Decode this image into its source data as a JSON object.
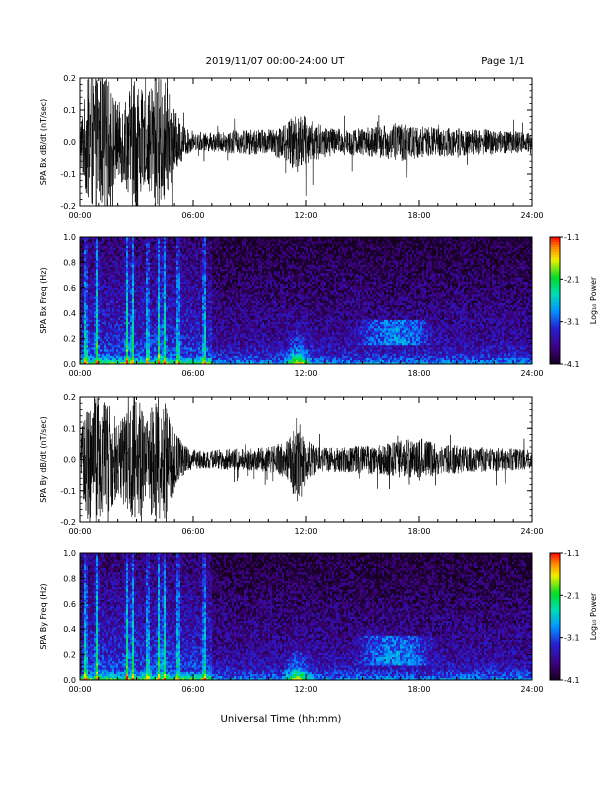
{
  "header": {
    "title": "2019/11/07  00:00-24:00 UT",
    "page": "Page 1/1"
  },
  "xlabel": "Universal Time (hh:mm)",
  "x_ticks": [
    "00:00",
    "06:00",
    "12:00",
    "18:00",
    "24:00"
  ],
  "colorbar": {
    "label": "Log₁₀ Power",
    "ticks": [
      "-1.1",
      "-2.1",
      "-3.1",
      "-4.1"
    ],
    "range": [
      -4.1,
      -1.1
    ]
  },
  "chart_data": [
    {
      "type": "line",
      "ylabel": "SPA Bx dB/dt (nT/sec)",
      "xlim": [
        0,
        24
      ],
      "ylim": [
        -0.2,
        0.2
      ],
      "y_ticks": [
        "0.2",
        "0.1",
        "0.0",
        "-0.1",
        "-0.2"
      ],
      "envelope": {
        "hours": [
          0,
          0.5,
          1,
          1.5,
          2,
          2.5,
          2.8,
          3,
          3.5,
          4,
          4.5,
          5,
          5.5,
          6,
          7,
          8,
          9,
          10,
          11,
          11.5,
          12,
          12.5,
          13,
          14,
          15,
          16,
          17,
          18,
          19,
          20,
          21,
          22,
          23,
          24
        ],
        "amplitude": [
          0.07,
          0.22,
          0.22,
          0.2,
          0.12,
          0.15,
          0.22,
          0.22,
          0.12,
          0.22,
          0.2,
          0.1,
          0.05,
          0.025,
          0.03,
          0.035,
          0.04,
          0.04,
          0.06,
          0.1,
          0.08,
          0.06,
          0.05,
          0.04,
          0.045,
          0.05,
          0.06,
          0.05,
          0.045,
          0.045,
          0.04,
          0.04,
          0.035,
          0.03
        ]
      }
    },
    {
      "type": "heatmap",
      "ylabel": "SPA Bx Freq (Hz)",
      "xlim": [
        0,
        24
      ],
      "ylim": [
        0,
        1.0
      ],
      "y_ticks": [
        "1.0",
        "0.8",
        "0.6",
        "0.4",
        "0.2",
        "0.0"
      ],
      "zlim": [
        -4.1,
        -1.1
      ],
      "features": {
        "vertical_bursts_hours": [
          0.3,
          0.9,
          2.5,
          2.8,
          3.6,
          4.2,
          4.5,
          5.2,
          6.6
        ],
        "lowfreq_enhancement_hours": [
          11.3,
          11.8
        ],
        "afternoon_band": {
          "hours": [
            14.5,
            19.0
          ],
          "freq": [
            0.15,
            0.35
          ]
        }
      }
    },
    {
      "type": "line",
      "ylabel": "SPA By dB/dt (nT/sec)",
      "xlim": [
        0,
        24
      ],
      "ylim": [
        -0.2,
        0.2
      ],
      "y_ticks": [
        "0.2",
        "0.1",
        "0.0",
        "-0.1",
        "-0.2"
      ],
      "envelope": {
        "hours": [
          0,
          0.5,
          1,
          1.5,
          2,
          2.5,
          2.8,
          3,
          3.5,
          4,
          4.5,
          5,
          5.5,
          6,
          7,
          8,
          9,
          10,
          11,
          11.5,
          12,
          12.5,
          13,
          14,
          15,
          16,
          17,
          18,
          19,
          20,
          21,
          22,
          23,
          24
        ],
        "amplitude": [
          0.08,
          0.22,
          0.2,
          0.18,
          0.12,
          0.16,
          0.22,
          0.22,
          0.12,
          0.22,
          0.2,
          0.1,
          0.05,
          0.03,
          0.03,
          0.035,
          0.035,
          0.04,
          0.06,
          0.14,
          0.07,
          0.05,
          0.04,
          0.04,
          0.045,
          0.05,
          0.06,
          0.07,
          0.05,
          0.045,
          0.04,
          0.04,
          0.035,
          0.03
        ]
      }
    },
    {
      "type": "heatmap",
      "ylabel": "SPA By Freq (Hz)",
      "xlim": [
        0,
        24
      ],
      "ylim": [
        0,
        1.0
      ],
      "y_ticks": [
        "1.0",
        "0.8",
        "0.6",
        "0.4",
        "0.2",
        "0.0"
      ],
      "zlim": [
        -4.1,
        -1.1
      ],
      "features": {
        "vertical_bursts_hours": [
          0.3,
          0.9,
          2.5,
          2.8,
          3.6,
          4.2,
          4.5,
          5.2,
          6.6
        ],
        "lowfreq_enhancement_hours": [
          11.3,
          11.8
        ],
        "afternoon_band": {
          "hours": [
            14.5,
            19.0
          ],
          "freq": [
            0.12,
            0.35
          ]
        }
      }
    }
  ]
}
